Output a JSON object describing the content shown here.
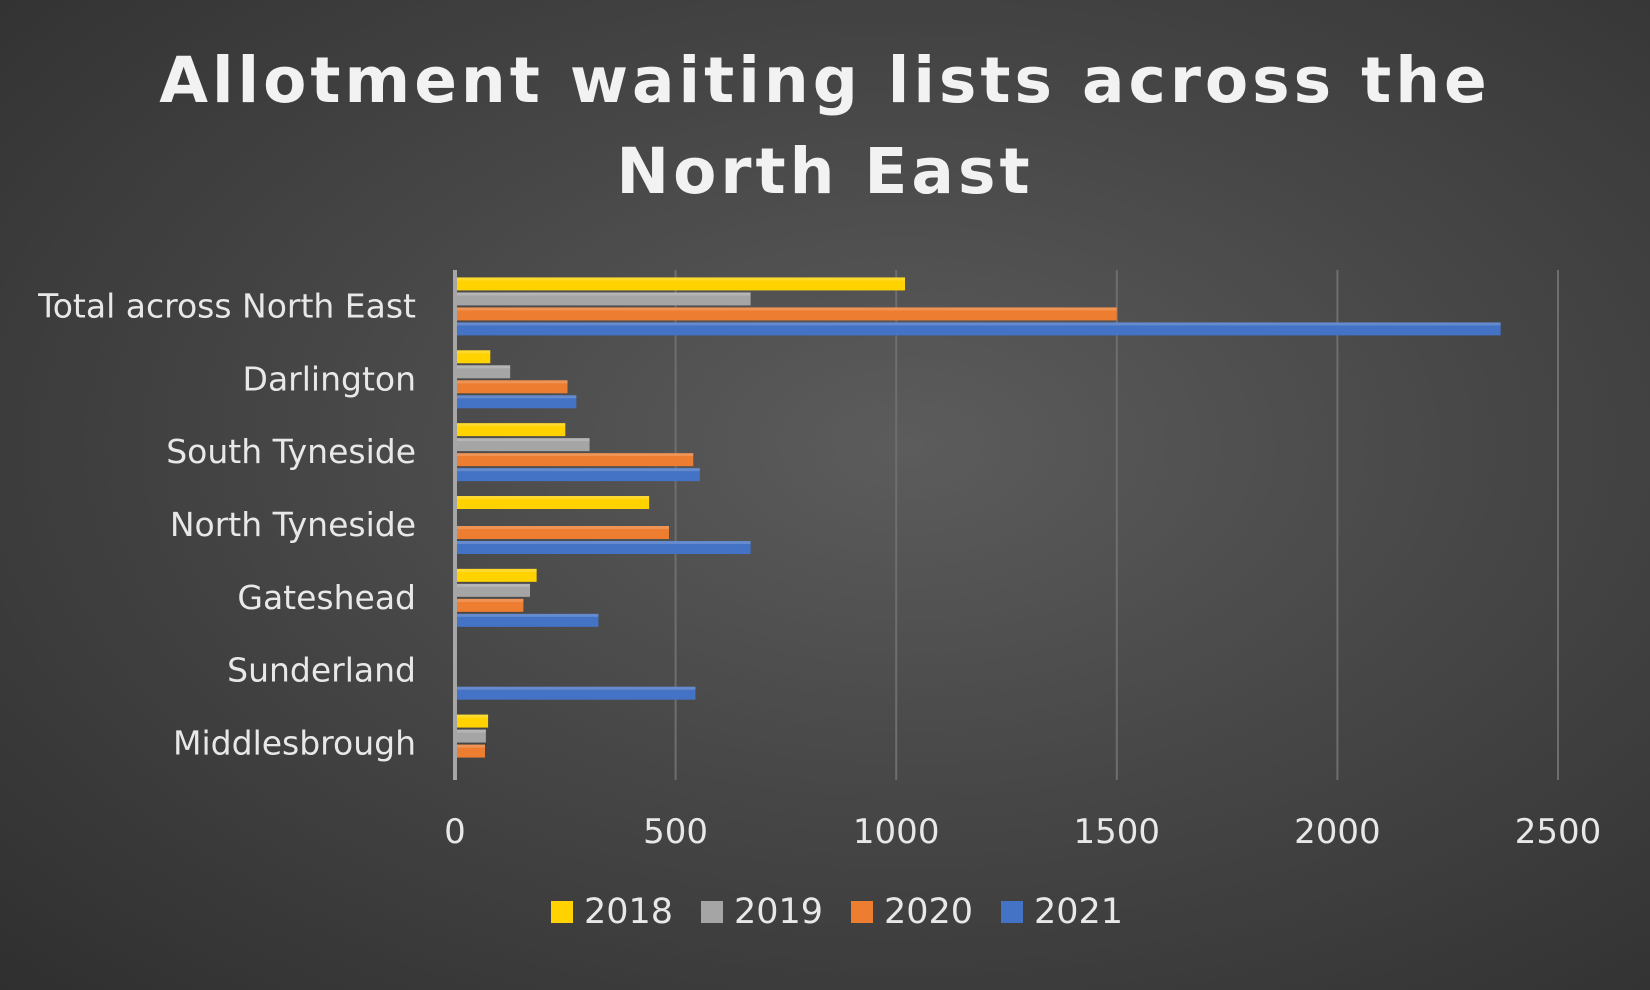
{
  "chart_data": {
    "type": "bar",
    "orientation": "horizontal",
    "title": "Allotment waiting lists across the North East",
    "title_lines": [
      "Allotment waiting lists across the",
      "North East"
    ],
    "categories": [
      "Total across North East",
      "Darlington",
      "South Tyneside",
      "North Tyneside",
      "Gateshead",
      "Sunderland",
      "Middlesbrough"
    ],
    "series": [
      {
        "name": "2018",
        "color": "#FFD200",
        "values": [
          1020,
          80,
          250,
          440,
          185,
          null,
          75
        ]
      },
      {
        "name": "2019",
        "color": "#A5A5A5",
        "values": [
          670,
          125,
          305,
          null,
          170,
          null,
          70
        ]
      },
      {
        "name": "2020",
        "color": "#ED7D31",
        "values": [
          1500,
          255,
          540,
          485,
          155,
          null,
          68
        ]
      },
      {
        "name": "2021",
        "color": "#4472C4",
        "values": [
          2370,
          275,
          555,
          670,
          325,
          545,
          null
        ]
      }
    ],
    "xticks": [
      "0",
      "500",
      "1000",
      "1500",
      "2000",
      "2500"
    ],
    "xlim": [
      0,
      2500
    ],
    "xlabel": "",
    "ylabel": "",
    "grid": true,
    "legend_position": "bottom"
  }
}
